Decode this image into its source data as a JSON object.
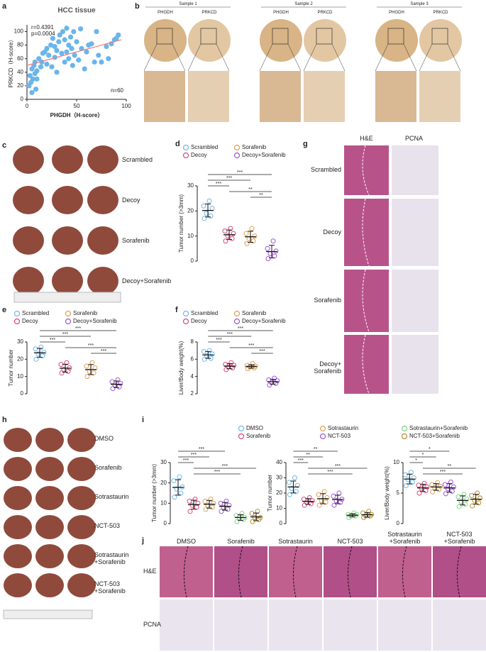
{
  "figure": {
    "panel_letters": [
      "a",
      "b",
      "c",
      "d",
      "e",
      "f",
      "g",
      "h",
      "i",
      "j"
    ],
    "b": {
      "samples": [
        "Sample 1",
        "Sample 2",
        "Sample 3"
      ],
      "stains": [
        "PHGDH",
        "PRKCD"
      ]
    },
    "c": {
      "rows": [
        "Scrambled",
        "Decoy",
        "Sorafenib",
        "Decoy+Sorafenib"
      ]
    },
    "g": {
      "columns": [
        "H&E",
        "PCNA"
      ],
      "rows": [
        "Scrambled",
        "Decoy",
        "Sorafenib",
        "Decoy+ Sorafenib"
      ]
    },
    "h": {
      "rows": [
        "DMSO",
        "Sorafenib",
        "Sotrastaurin",
        "NCT-503",
        "Sotrastaurin +Sorafenib",
        "NCT-503 +Sorafenib"
      ]
    },
    "j": {
      "columns": [
        "DMSO",
        "Sorafenib",
        "Sotrastaurin",
        "NCT-503",
        "Sotrastaurin +Sorafenib",
        "NCT-503 +Sorafenib"
      ],
      "rows": [
        "H&E",
        "PCNA"
      ]
    }
  },
  "chart_data": [
    {
      "type": "scatter",
      "title": "HCC tissue",
      "x_label": "PHGDH（H-score）",
      "y_label": "PRKCD（H-score）",
      "annotations": [
        "r=0.4391",
        "p=0.0004",
        "n=60"
      ],
      "color": "#6bb5ea",
      "fit_color": "#f08080",
      "x": [
        2,
        3,
        4,
        5,
        5,
        6,
        7,
        8,
        8,
        9,
        10,
        10,
        12,
        14,
        15,
        16,
        18,
        20,
        20,
        22,
        24,
        25,
        26,
        28,
        28,
        30,
        30,
        32,
        33,
        35,
        36,
        38,
        38,
        40,
        40,
        42,
        42,
        44,
        45,
        46,
        47,
        48,
        50,
        52,
        54,
        55,
        58,
        60,
        62,
        65,
        68,
        70,
        72,
        75,
        80,
        82,
        85,
        88,
        90,
        92
      ],
      "y": [
        20,
        35,
        25,
        10,
        45,
        30,
        50,
        55,
        38,
        15,
        30,
        42,
        60,
        48,
        55,
        68,
        70,
        75,
        52,
        65,
        80,
        48,
        90,
        62,
        78,
        40,
        72,
        85,
        95,
        68,
        100,
        55,
        88,
        70,
        105,
        60,
        80,
        92,
        75,
        50,
        100,
        65,
        85,
        58,
        104,
        75,
        45,
        70,
        80,
        82,
        55,
        100,
        65,
        55,
        78,
        60,
        82,
        88,
        90,
        95
      ],
      "fit": {
        "x": [
          0,
          95
        ],
        "y": [
          50,
          88
        ]
      },
      "xlim": [
        0,
        100
      ],
      "xticks": [
        0,
        50,
        100
      ],
      "ylim": [
        0,
        110
      ],
      "yticks": [
        0,
        20,
        40,
        60,
        80,
        100
      ]
    },
    {
      "type": "dot",
      "y_label": "Tumor number (>3mm)",
      "legend": true,
      "ylim": [
        0,
        30
      ],
      "yticks": [
        0,
        10,
        20,
        30
      ],
      "series": [
        {
          "name": "Scrambled",
          "color": "#6fb8e8",
          "values": [
            17,
            18,
            19,
            21,
            22,
            24
          ],
          "mean": 20.2,
          "sd": 2.6
        },
        {
          "name": "Decoy",
          "color": "#e0457b",
          "values": [
            8,
            9,
            10,
            11,
            12,
            13
          ],
          "mean": 10.5,
          "sd": 1.9
        },
        {
          "name": "Sorafenib",
          "color": "#e0a050",
          "values": [
            7,
            8,
            9,
            10,
            11,
            13
          ],
          "mean": 9.7,
          "sd": 2.2
        },
        {
          "name": "Decoy+Sorafenib",
          "color": "#a055d8",
          "values": [
            1,
            2,
            3,
            4,
            5,
            8
          ],
          "mean": 3.8,
          "sd": 2.5
        }
      ],
      "brackets": [
        {
          "groups": [
            "Scrambled",
            "Decoy+Sorafenib"
          ],
          "label": "***"
        },
        {
          "groups": [
            "Scrambled",
            "Sorafenib"
          ],
          "label": "***"
        },
        {
          "groups": [
            "Scrambled",
            "Decoy"
          ],
          "label": "***"
        },
        {
          "groups": [
            "Decoy",
            "Decoy+Sorafenib"
          ],
          "label": "**"
        },
        {
          "groups": [
            "Sorafenib",
            "Decoy+Sorafenib"
          ],
          "label": "**"
        }
      ]
    },
    {
      "type": "dot",
      "y_label": "Tumor number",
      "legend": true,
      "ylim": [
        0,
        30
      ],
      "yticks": [
        0,
        10,
        20,
        30
      ],
      "series": [
        {
          "name": "Scrambled",
          "color": "#6fb8e8",
          "values": [
            20,
            22,
            23,
            24,
            26,
            27
          ],
          "mean": 23.7,
          "sd": 2.6
        },
        {
          "name": "Decoy",
          "color": "#e0457b",
          "values": [
            12,
            13,
            14,
            15,
            17,
            18
          ],
          "mean": 14.8,
          "sd": 2.3
        },
        {
          "name": "Sorafenib",
          "color": "#e0a050",
          "values": [
            10,
            12,
            13,
            15,
            16,
            18
          ],
          "mean": 14,
          "sd": 2.9
        },
        {
          "name": "Decoy+Sorafenib",
          "color": "#a055d8",
          "values": [
            3,
            4,
            5,
            6,
            7,
            8
          ],
          "mean": 5.5,
          "sd": 1.9
        }
      ],
      "brackets": [
        {
          "groups": [
            "Scrambled",
            "Decoy+Sorafenib"
          ],
          "label": "***"
        },
        {
          "groups": [
            "Scrambled",
            "Sorafenib"
          ],
          "label": "***"
        },
        {
          "groups": [
            "Scrambled",
            "Decoy"
          ],
          "label": "***"
        },
        {
          "groups": [
            "Decoy",
            "Decoy+Sorafenib"
          ],
          "label": "***"
        },
        {
          "groups": [
            "Sorafenib",
            "Decoy+Sorafenib"
          ],
          "label": "***"
        }
      ]
    },
    {
      "type": "dot",
      "y_label": "Liver/Body weight(%)",
      "legend": true,
      "ylim": [
        2,
        8
      ],
      "yticks": [
        2,
        4,
        6,
        8
      ],
      "series": [
        {
          "name": "Scrambled",
          "color": "#6fb8e8",
          "values": [
            6.0,
            6.1,
            6.4,
            6.6,
            6.9,
            7.0
          ],
          "mean": 6.5,
          "sd": 0.4
        },
        {
          "name": "Decoy",
          "color": "#e0457b",
          "values": [
            4.8,
            5.0,
            5.1,
            5.3,
            5.4,
            5.6
          ],
          "mean": 5.2,
          "sd": 0.3
        },
        {
          "name": "Sorafenib",
          "color": "#e0a050",
          "values": [
            4.9,
            5.0,
            5.1,
            5.2,
            5.3,
            5.5
          ],
          "mean": 5.17,
          "sd": 0.2
        },
        {
          "name": "Decoy+Sorafenib",
          "color": "#a055d8",
          "values": [
            3.0,
            3.2,
            3.3,
            3.5,
            3.6,
            3.8
          ],
          "mean": 3.4,
          "sd": 0.28
        }
      ],
      "brackets": [
        {
          "groups": [
            "Scrambled",
            "Decoy+Sorafenib"
          ],
          "label": "***"
        },
        {
          "groups": [
            "Scrambled",
            "Sorafenib"
          ],
          "label": "***"
        },
        {
          "groups": [
            "Scrambled",
            "Decoy"
          ],
          "label": "***"
        },
        {
          "groups": [
            "Decoy",
            "Decoy+Sorafenib"
          ],
          "label": "***"
        },
        {
          "groups": [
            "Sorafenib",
            "Decoy+Sorafenib"
          ],
          "label": "***"
        }
      ]
    },
    {
      "type": "dot",
      "y_label": "Tumor number (>3mm)",
      "legend": true,
      "ylim": [
        0,
        30
      ],
      "yticks": [
        0,
        10,
        20,
        30
      ],
      "series": [
        {
          "name": "DMSO",
          "color": "#6fb8e8",
          "values": [
            13,
            15,
            17,
            18,
            21,
            23
          ],
          "mean": 17.8,
          "sd": 3.8
        },
        {
          "name": "Sorafenib",
          "color": "#e0457b",
          "values": [
            6,
            8,
            9,
            10,
            11,
            12
          ],
          "mean": 9.3,
          "sd": 2.2
        },
        {
          "name": "Sotrastaurin",
          "color": "#dca45a",
          "values": [
            7,
            8,
            9,
            10,
            11,
            12
          ],
          "mean": 9.5,
          "sd": 1.9
        },
        {
          "name": "NCT-503",
          "color": "#a055d8",
          "values": [
            6,
            7,
            8,
            9,
            10,
            11
          ],
          "mean": 8.5,
          "sd": 1.9
        },
        {
          "name": "Sotrastaurin+Sorafenib",
          "color": "#86d486",
          "values": [
            1,
            2,
            3,
            3,
            4,
            5
          ],
          "mean": 3,
          "sd": 1.4
        },
        {
          "name": "NCT-503+Sorafenib",
          "color": "#b8902a",
          "values": [
            1,
            2,
            3,
            3,
            5,
            6
          ],
          "mean": 3.3,
          "sd": 1.9
        }
      ],
      "brackets": [
        {
          "groups": [
            "DMSO",
            "NCT-503"
          ],
          "label": "***"
        },
        {
          "groups": [
            "DMSO",
            "Sotrastaurin"
          ],
          "label": "***"
        },
        {
          "groups": [
            "DMSO",
            "Sorafenib"
          ],
          "label": "***"
        },
        {
          "groups": [
            "Sorafenib",
            "NCT-503+Sorafenib"
          ],
          "label": "***"
        },
        {
          "groups": [
            "Sorafenib",
            "Sotrastaurin+Sorafenib"
          ],
          "label": "***"
        }
      ]
    },
    {
      "type": "dot",
      "y_label": "Tumor number",
      "legend": false,
      "ylim": [
        0,
        40
      ],
      "yticks": [
        0,
        10,
        20,
        30,
        40
      ],
      "series": [
        {
          "name": "DMSO",
          "color": "#6fb8e8",
          "values": [
            19,
            21,
            23,
            25,
            27,
            30
          ],
          "mean": 24,
          "sd": 3.9
        },
        {
          "name": "Sorafenib",
          "color": "#e0457b",
          "values": [
            12,
            13,
            14,
            15,
            16,
            17
          ],
          "mean": 14.5,
          "sd": 1.9
        },
        {
          "name": "Sotrastaurin",
          "color": "#dca45a",
          "values": [
            12,
            14,
            15,
            17,
            19,
            21
          ],
          "mean": 16.3,
          "sd": 3.3
        },
        {
          "name": "NCT-503",
          "color": "#a055d8",
          "values": [
            12,
            14,
            15,
            16,
            18,
            20
          ],
          "mean": 15.8,
          "sd": 2.8
        },
        {
          "name": "Sotrastaurin+Sorafenib",
          "color": "#86d486",
          "values": [
            4,
            5,
            5,
            6,
            6,
            7
          ],
          "mean": 5.5,
          "sd": 1
        },
        {
          "name": "NCT-503+Sorafenib",
          "color": "#b8902a",
          "values": [
            4,
            5,
            5,
            6,
            7,
            8
          ],
          "mean": 5.8,
          "sd": 1.5
        }
      ],
      "brackets": [
        {
          "groups": [
            "DMSO",
            "NCT-503"
          ],
          "label": "**"
        },
        {
          "groups": [
            "DMSO",
            "Sotrastaurin"
          ],
          "label": "**"
        },
        {
          "groups": [
            "DMSO",
            "Sorafenib"
          ],
          "label": "***"
        },
        {
          "groups": [
            "Sorafenib",
            "NCT-503+Sorafenib"
          ],
          "label": "***"
        },
        {
          "groups": [
            "Sorafenib",
            "Sotrastaurin+Sorafenib"
          ],
          "label": "***"
        }
      ]
    },
    {
      "type": "dot",
      "y_label": "Liver/Body weight(%)",
      "legend": false,
      "ylim": [
        0,
        10
      ],
      "yticks": [
        0,
        5,
        10
      ],
      "series": [
        {
          "name": "DMSO",
          "color": "#6fb8e8",
          "values": [
            6.2,
            6.8,
            7.2,
            7.5,
            8.0,
            8.4
          ],
          "mean": 7.3,
          "sd": 0.8
        },
        {
          "name": "Sorafenib",
          "color": "#e0457b",
          "values": [
            5.0,
            5.4,
            5.8,
            6.0,
            6.3,
            6.6
          ],
          "mean": 5.85,
          "sd": 0.6
        },
        {
          "name": "Sotrastaurin",
          "color": "#dca45a",
          "values": [
            5.2,
            5.6,
            5.9,
            6.1,
            6.4,
            6.7
          ],
          "mean": 6.0,
          "sd": 0.55
        },
        {
          "name": "NCT-503",
          "color": "#a055d8",
          "values": [
            4.9,
            5.3,
            5.7,
            6.0,
            6.4,
            6.8
          ],
          "mean": 5.85,
          "sd": 0.7
        },
        {
          "name": "Sotrastaurin+Sorafenib",
          "color": "#86d486",
          "values": [
            2.8,
            3.2,
            3.6,
            4.0,
            4.4,
            4.8
          ],
          "mean": 3.8,
          "sd": 0.75
        },
        {
          "name": "NCT-503+Sorafenib",
          "color": "#b8902a",
          "values": [
            2.9,
            3.4,
            3.8,
            4.2,
            4.6,
            5.0
          ],
          "mean": 4.0,
          "sd": 0.8
        }
      ],
      "brackets": [
        {
          "groups": [
            "DMSO",
            "NCT-503"
          ],
          "label": "*"
        },
        {
          "groups": [
            "DMSO",
            "Sotrastaurin"
          ],
          "label": "*"
        },
        {
          "groups": [
            "DMSO",
            "Sorafenib"
          ],
          "label": "*"
        },
        {
          "groups": [
            "Sorafenib",
            "NCT-503+Sorafenib"
          ],
          "label": "**"
        },
        {
          "groups": [
            "Sorafenib",
            "Sotrastaurin+Sorafenib"
          ],
          "label": "***"
        }
      ]
    }
  ]
}
